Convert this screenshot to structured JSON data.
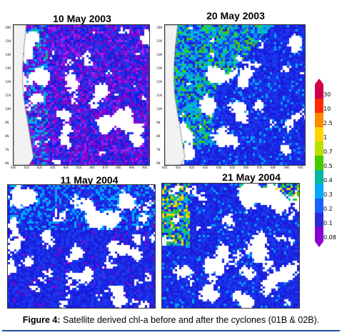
{
  "panels": [
    {
      "id": "p1",
      "title": "10 May 2003",
      "lat_ticks": [
        "18N",
        "15N",
        "14N",
        "13N",
        "12N",
        "11N",
        "10N",
        "9N",
        "8N",
        "7N",
        "6N"
      ],
      "lon_ticks": [
        "60E",
        "81E",
        "82E",
        "83E",
        "84E",
        "85E",
        "86E",
        "87E",
        "88E",
        "89E",
        "90E"
      ]
    },
    {
      "id": "p2",
      "title": "20 May 2003",
      "lat_ticks": [
        "18N",
        "15N",
        "14N",
        "13N",
        "12N",
        "11N",
        "10N",
        "9N",
        "8N",
        "7N",
        "6N"
      ],
      "lon_ticks": [
        "80E",
        "81E",
        "82E",
        "83E",
        "84E",
        "85E",
        "86E",
        "87E",
        "88E",
        "89E",
        "90E"
      ]
    },
    {
      "id": "p3",
      "title": "11 May 2004",
      "lat_ticks": [
        "",
        "",
        "",
        "",
        "",
        "",
        "",
        "",
        "",
        "",
        ""
      ],
      "lon_ticks": [
        "",
        "",
        "",
        "",
        "",
        "",
        "",
        "",
        "",
        ""
      ]
    },
    {
      "id": "p4",
      "title": "21 May 2004",
      "lat_ticks": [
        "",
        "",
        "",
        "",
        "",
        "",
        "",
        "",
        "",
        "",
        ""
      ],
      "lon_ticks": [
        "",
        "",
        "",
        "",
        "",
        "",
        "",
        "",
        "",
        ""
      ]
    }
  ],
  "colorbar": {
    "labels": [
      "30",
      "10",
      "2.5",
      "1",
      "0.7",
      "0.5",
      "0.4",
      "0.3",
      "0.2",
      "0.1",
      "0.08"
    ],
    "colors": [
      "#d0004a",
      "#ff2a00",
      "#ff8a00",
      "#ffd400",
      "#b8e000",
      "#44cc00",
      "#00b8a0",
      "#00a8ff",
      "#1a60ff",
      "#2a2ad8",
      "#8a00d0"
    ]
  },
  "caption": {
    "prefix": "Figure 4:",
    "text": " Satellite derived chl-a before and after the cyclones (01B & 02B)."
  }
}
